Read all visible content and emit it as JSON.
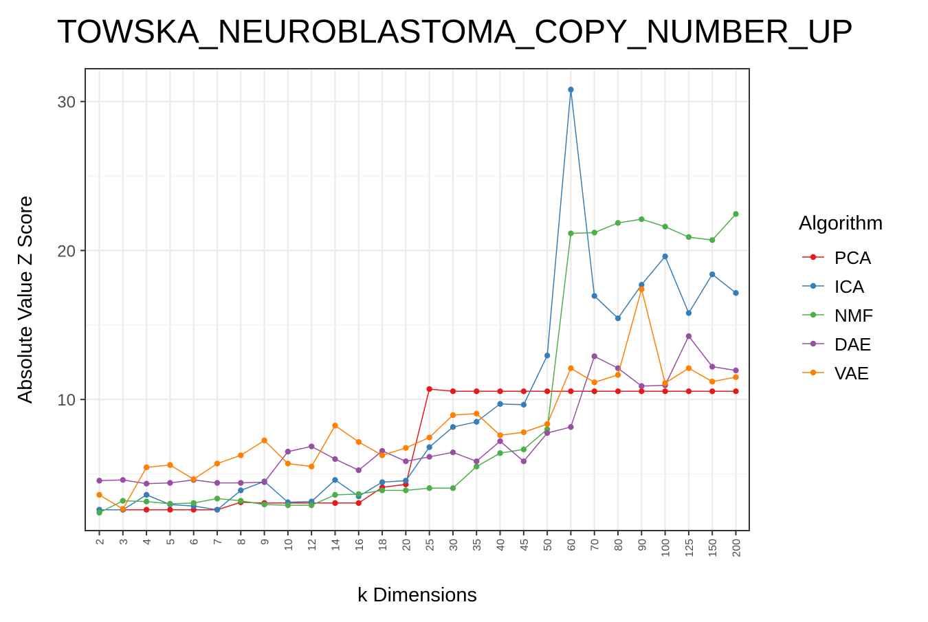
{
  "chart_data": {
    "type": "line",
    "title": "TOWSKA_NEUROBLASTOMA_COPY_NUMBER_UP",
    "xlabel": "k Dimensions",
    "ylabel": "Absolute Value Z Score",
    "categories": [
      "2",
      "3",
      "4",
      "5",
      "6",
      "7",
      "8",
      "9",
      "10",
      "12",
      "14",
      "16",
      "18",
      "20",
      "25",
      "30",
      "35",
      "40",
      "45",
      "50",
      "60",
      "70",
      "80",
      "90",
      "100",
      "125",
      "150",
      "200"
    ],
    "ylim": [
      1.2,
      32.2
    ],
    "yticks": [
      10,
      20,
      30
    ],
    "grid": true,
    "legend_title": "Algorithm",
    "legend_position": "right",
    "series": [
      {
        "name": "PCA",
        "color": "#e41a1c",
        "values": [
          2.6,
          2.6,
          2.6,
          2.6,
          2.6,
          2.6,
          3.1,
          3.05,
          3.05,
          3.05,
          3.05,
          3.05,
          4.1,
          4.3,
          10.7,
          10.55,
          10.55,
          10.55,
          10.55,
          10.55,
          10.55,
          10.55,
          10.55,
          10.55,
          10.55,
          10.55,
          10.55,
          10.55
        ]
      },
      {
        "name": "ICA",
        "color": "#377eb8",
        "values": [
          2.6,
          2.6,
          3.6,
          2.95,
          2.85,
          2.6,
          3.9,
          4.5,
          3.1,
          3.15,
          4.6,
          3.5,
          4.45,
          4.55,
          6.8,
          8.15,
          8.5,
          9.7,
          9.65,
          12.95,
          30.8,
          16.95,
          15.45,
          17.7,
          19.6,
          15.8,
          18.4,
          17.15
        ]
      },
      {
        "name": "NMF",
        "color": "#4daf4a",
        "values": [
          2.4,
          3.2,
          3.15,
          3.0,
          3.05,
          3.35,
          3.2,
          2.95,
          2.9,
          2.9,
          3.6,
          3.65,
          3.9,
          3.9,
          4.05,
          4.05,
          5.5,
          6.4,
          6.65,
          8.0,
          21.15,
          21.2,
          21.85,
          22.1,
          21.6,
          20.9,
          20.7,
          22.45
        ]
      },
      {
        "name": "DAE",
        "color": "#984ea3",
        "values": [
          4.55,
          4.6,
          4.35,
          4.4,
          4.6,
          4.4,
          4.4,
          4.45,
          6.5,
          6.85,
          6.0,
          5.25,
          6.55,
          5.85,
          6.15,
          6.45,
          5.85,
          7.2,
          5.85,
          7.75,
          8.15,
          12.9,
          12.1,
          10.9,
          10.95,
          14.25,
          12.2,
          11.95
        ]
      },
      {
        "name": "VAE",
        "color": "#ff7f00",
        "values": [
          3.6,
          2.65,
          5.45,
          5.6,
          4.65,
          5.7,
          6.25,
          7.25,
          5.7,
          5.5,
          8.25,
          7.15,
          6.25,
          6.75,
          7.45,
          8.95,
          9.05,
          7.6,
          7.8,
          8.35,
          12.1,
          11.15,
          11.65,
          17.4,
          11.1,
          12.1,
          11.2,
          11.5
        ]
      }
    ]
  }
}
